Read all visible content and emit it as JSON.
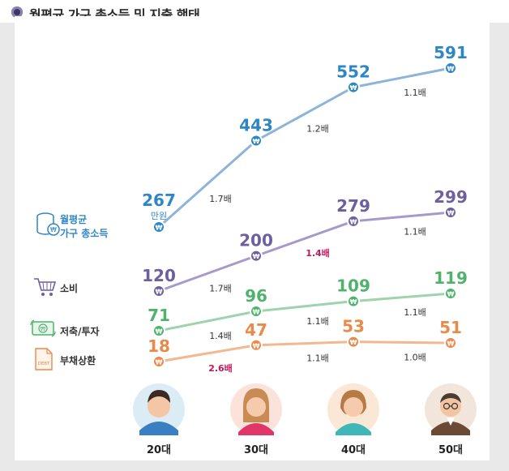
{
  "title": "월평균 가구 총소득 및 지출 행태",
  "colors": {
    "income": "#2f86c5",
    "income_line": "#8fb4d9",
    "consumption": "#6e5f9e",
    "consumption_line": "#a69acb",
    "savings": "#4fb36b",
    "savings_line": "#9fd3ad",
    "debt": "#e9894a",
    "debt_line": "#f1b892",
    "highlight_ratio": "#c2185b",
    "ratio_text": "#333333"
  },
  "chart_data": {
    "type": "line",
    "categories": [
      "20대",
      "30대",
      "40대",
      "50대"
    ],
    "unit_label": "만원",
    "series": [
      {
        "name": "월평균 가구 총소득",
        "key": "income",
        "values": [
          267,
          443,
          552,
          591
        ],
        "ratios": [
          "1.7배",
          "1.2배",
          "1.1배"
        ],
        "highlight_ratio_index": -1
      },
      {
        "name": "소비",
        "key": "consumption",
        "values": [
          120,
          200,
          279,
          299
        ],
        "ratios": [
          "1.7배",
          "1.4배",
          "1.1배"
        ],
        "highlight_ratio_index": 1
      },
      {
        "name": "저축/투자",
        "key": "savings",
        "values": [
          71,
          96,
          109,
          119
        ],
        "ratios": [
          "1.4배",
          "1.1배",
          "1.1배"
        ],
        "highlight_ratio_index": -1
      },
      {
        "name": "부채상환",
        "key": "debt",
        "values": [
          18,
          47,
          53,
          51
        ],
        "ratios": [
          "2.6배",
          "1.1배",
          "1.0배"
        ],
        "highlight_ratio_index": 0
      }
    ]
  },
  "legend": [
    {
      "label_line1": "월평균",
      "label_line2": "가구 총소득",
      "icon": "coin-stack-icon"
    },
    {
      "label_line1": "소비",
      "label_line2": "",
      "icon": "shopping-cart-icon"
    },
    {
      "label_line1": "저축/투자",
      "label_line2": "",
      "icon": "money-bill-icon"
    },
    {
      "label_line1": "부채상환",
      "label_line2": "",
      "icon": "debt-document-icon"
    }
  ],
  "avatars": [
    {
      "label": "20대",
      "icon": "young-man-avatar-icon"
    },
    {
      "label": "30대",
      "icon": "woman-avatar-icon"
    },
    {
      "label": "40대",
      "icon": "middle-aged-woman-avatar-icon"
    },
    {
      "label": "50대",
      "icon": "older-man-glasses-avatar-icon"
    }
  ]
}
